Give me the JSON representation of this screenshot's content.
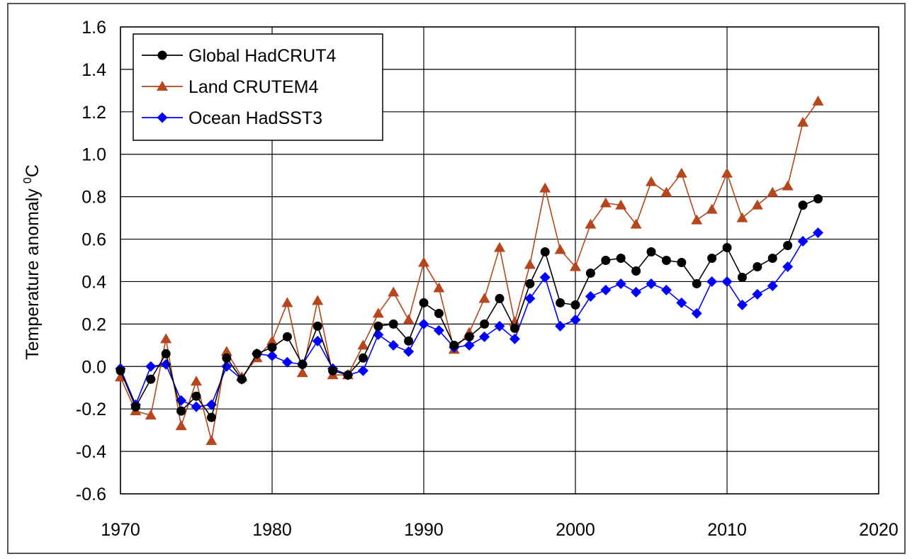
{
  "chart_data": {
    "type": "line",
    "title": "",
    "xlabel": "",
    "ylabel": "Temperature anomaly",
    "ylabel_superscript": "0",
    "ylabel_unit": "C",
    "xlim": [
      1970,
      2020
    ],
    "ylim": [
      -0.6,
      1.6
    ],
    "x_ticks": [
      "1970",
      "1980",
      "1990",
      "2000",
      "2010",
      "2020"
    ],
    "y_ticks": [
      "1.6",
      "1.4",
      "1.2",
      "1.0",
      "0.8",
      "0.6",
      "0.4",
      "0.2",
      "0.0",
      "-0.2",
      "-0.4",
      "-0.6"
    ],
    "grid": true,
    "legend_position": "top-left",
    "x": [
      1970,
      1971,
      1972,
      1973,
      1974,
      1975,
      1976,
      1977,
      1978,
      1979,
      1980,
      1981,
      1982,
      1983,
      1984,
      1985,
      1986,
      1987,
      1988,
      1989,
      1990,
      1991,
      1992,
      1993,
      1994,
      1995,
      1996,
      1997,
      1998,
      1999,
      2000,
      2001,
      2002,
      2003,
      2004,
      2005,
      2006,
      2007,
      2008,
      2009,
      2010,
      2011,
      2012,
      2013,
      2014,
      2015,
      2016
    ],
    "series": [
      {
        "name": "Global HadCRUT4",
        "color": "#000000",
        "marker": "circle",
        "values": [
          -0.02,
          -0.19,
          -0.06,
          0.06,
          -0.21,
          -0.14,
          -0.24,
          0.04,
          -0.06,
          0.06,
          0.09,
          0.14,
          0.01,
          0.19,
          -0.02,
          -0.04,
          0.04,
          0.19,
          0.2,
          0.12,
          0.3,
          0.25,
          0.1,
          0.14,
          0.2,
          0.32,
          0.18,
          0.39,
          0.54,
          0.3,
          0.29,
          0.44,
          0.5,
          0.51,
          0.45,
          0.54,
          0.5,
          0.49,
          0.39,
          0.51,
          0.56,
          0.42,
          0.47,
          0.51,
          0.57,
          0.76,
          0.79
        ]
      },
      {
        "name": "Land CRUTEM4",
        "color": "#b5461e",
        "marker": "triangle",
        "values": [
          -0.05,
          -0.21,
          -0.23,
          0.13,
          -0.28,
          -0.07,
          -0.35,
          0.07,
          -0.05,
          0.04,
          0.12,
          0.3,
          -0.03,
          0.31,
          -0.04,
          -0.04,
          0.1,
          0.25,
          0.35,
          0.22,
          0.49,
          0.37,
          0.08,
          0.16,
          0.32,
          0.56,
          0.21,
          0.48,
          0.84,
          0.55,
          0.47,
          0.67,
          0.77,
          0.76,
          0.67,
          0.87,
          0.82,
          0.91,
          0.69,
          0.74,
          0.91,
          0.7,
          0.76,
          0.82,
          0.85,
          1.15,
          1.25
        ]
      },
      {
        "name": "Ocean HadSST3",
        "color": "#0000ff",
        "marker": "diamond",
        "values": [
          -0.01,
          -0.18,
          0.0,
          0.01,
          -0.16,
          -0.19,
          -0.18,
          0.0,
          -0.06,
          0.06,
          0.05,
          0.02,
          0.01,
          0.12,
          -0.01,
          -0.04,
          -0.02,
          0.15,
          0.1,
          0.07,
          0.2,
          0.17,
          0.09,
          0.1,
          0.14,
          0.19,
          0.13,
          0.32,
          0.42,
          0.19,
          0.22,
          0.33,
          0.36,
          0.39,
          0.35,
          0.39,
          0.36,
          0.3,
          0.25,
          0.4,
          0.4,
          0.29,
          0.34,
          0.38,
          0.47,
          0.59,
          0.63
        ]
      }
    ]
  }
}
